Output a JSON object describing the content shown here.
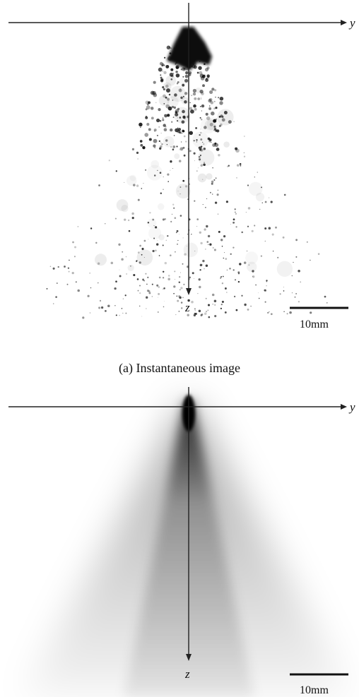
{
  "panels": [
    {
      "axis_labels": {
        "y": "y",
        "z": "z"
      },
      "scale_bar": "10mm",
      "caption": "(a) Instantaneous image"
    },
    {
      "axis_labels": {
        "y": "y",
        "z": "z"
      },
      "scale_bar": "10mm"
    }
  ]
}
